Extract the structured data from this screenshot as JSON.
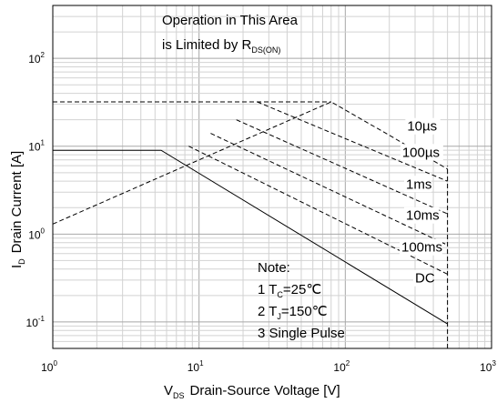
{
  "chart_data": {
    "type": "line",
    "xscale": "log",
    "yscale": "log",
    "xlim": [
      1,
      1000
    ],
    "ylim": [
      0.05,
      400
    ],
    "grid": true,
    "xlabel": {
      "main": "V",
      "sub": "DS",
      "rest": "Drain-Source Voltage [V]"
    },
    "ylabel": {
      "main": "I",
      "sub": "D",
      "rest": "Drain Current [A]"
    },
    "x_ticks": [
      {
        "v": 1,
        "base": "10",
        "exp": "0"
      },
      {
        "v": 10,
        "base": "10",
        "exp": "1"
      },
      {
        "v": 100,
        "base": "10",
        "exp": "2"
      },
      {
        "v": 1000,
        "base": "10",
        "exp": "3"
      }
    ],
    "y_ticks": [
      {
        "v": 0.1,
        "base": "10",
        "exp": "-1"
      },
      {
        "v": 1,
        "base": "10",
        "exp": "0"
      },
      {
        "v": 10,
        "base": "10",
        "exp": "1"
      },
      {
        "v": 100,
        "base": "10",
        "exp": "2"
      }
    ],
    "series": [
      {
        "name": "10µs",
        "style": "dashed",
        "points": [
          [
            1,
            1.3
          ],
          [
            80,
            32
          ],
          [
            190,
            14
          ],
          [
            500,
            5.5
          ]
        ]
      },
      {
        "name": "100µs",
        "style": "dashed",
        "points": [
          [
            25,
            32
          ],
          [
            500,
            4.0
          ]
        ]
      },
      {
        "name": "1ms",
        "style": "dashed",
        "points": [
          [
            18,
            20
          ],
          [
            500,
            1.7
          ]
        ]
      },
      {
        "name": "10ms",
        "style": "dashed",
        "points": [
          [
            12,
            14
          ],
          [
            500,
            0.75
          ]
        ]
      },
      {
        "name": "100ms",
        "style": "dashed",
        "points": [
          [
            8.5,
            10
          ],
          [
            500,
            0.35
          ]
        ]
      },
      {
        "name": "DC",
        "style": "solid",
        "points": [
          [
            1,
            9
          ],
          [
            5.5,
            9
          ],
          [
            500,
            0.095
          ]
        ]
      },
      {
        "name": "",
        "style": "dashed",
        "points": [
          [
            1,
            32
          ],
          [
            80,
            32
          ]
        ]
      },
      {
        "name": "",
        "style": "dashed",
        "points": [
          [
            500,
            0.05
          ],
          [
            500,
            6
          ]
        ]
      }
    ],
    "curve_labels": [
      {
        "text": "10µs",
        "x": 265,
        "y": 15
      },
      {
        "text": "100µs",
        "x": 245,
        "y": 7.6
      },
      {
        "text": "1ms",
        "x": 260,
        "y": 3.3
      },
      {
        "text": "10ms",
        "x": 260,
        "y": 1.45
      },
      {
        "text": "100ms",
        "x": 242,
        "y": 0.63
      },
      {
        "text": "DC",
        "x": 300,
        "y": 0.28
      }
    ],
    "annotation": {
      "line1": "Operation in This Area",
      "line2_main": "is Limited by R",
      "line2_sub": "DS(ON)"
    },
    "notes": {
      "title": "Note:",
      "n1": {
        "prefix": "1 T",
        "sub": "C",
        "rest": "=25℃"
      },
      "n2": {
        "prefix": "2 T",
        "sub": "J",
        "rest": "=150℃"
      },
      "n3": "3 Single Pulse"
    }
  }
}
